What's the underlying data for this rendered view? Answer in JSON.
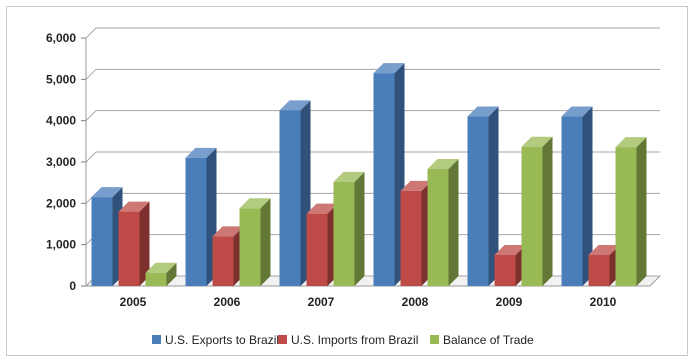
{
  "chart_data": {
    "type": "bar",
    "style": "3d-clustered-column",
    "categories": [
      "2005",
      "2006",
      "2007",
      "2008",
      "2009",
      "2010"
    ],
    "series": [
      {
        "name": "U.S. Exports to Brazil",
        "color": "#4a7ebb",
        "values": [
          2150,
          3100,
          4250,
          5150,
          4100,
          4100
        ]
      },
      {
        "name": "U.S. Imports from Brazil",
        "color": "#be4b48",
        "values": [
          1800,
          1200,
          1750,
          2300,
          750,
          750
        ]
      },
      {
        "name": "Balance of Trade",
        "color": "#98b954",
        "values": [
          320,
          1880,
          2520,
          2830,
          3370,
          3360
        ]
      }
    ],
    "yticks": [
      "0",
      "1,000",
      "2,000",
      "3,000",
      "4,000",
      "5,000",
      "6,000"
    ],
    "ylim": [
      0,
      6000
    ],
    "grid": true,
    "legend_position": "bottom",
    "title": "",
    "xlabel": "",
    "ylabel": ""
  }
}
